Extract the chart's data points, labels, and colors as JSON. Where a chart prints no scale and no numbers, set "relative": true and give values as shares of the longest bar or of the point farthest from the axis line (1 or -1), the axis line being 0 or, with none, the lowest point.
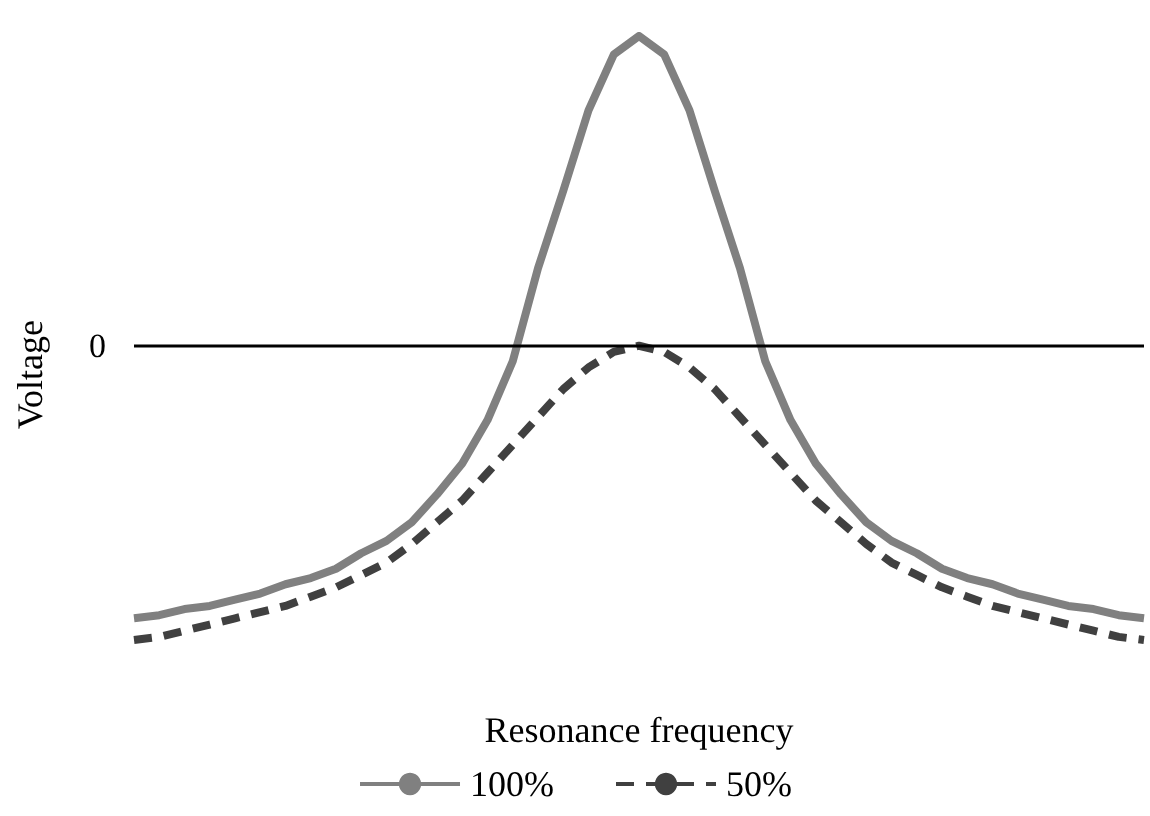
{
  "chart_data": {
    "type": "line",
    "relative": true,
    "xlabel": "Resonance frequency",
    "ylabel": "Voltage",
    "categories": [
      null,
      null,
      null,
      null,
      null,
      null,
      null,
      null,
      null,
      null,
      null,
      null,
      null,
      null,
      null,
      null,
      null,
      null,
      null,
      null,
      null,
      null,
      null,
      null,
      null,
      null,
      null,
      null,
      null,
      null,
      null,
      null,
      null,
      null,
      null,
      null,
      null,
      null,
      null,
      null,
      null
    ],
    "series": [
      {
        "name": "100%",
        "color": "#808080",
        "line_style": "solid",
        "values": [
          -0.88,
          -0.87,
          -0.85,
          -0.84,
          -0.82,
          -0.8,
          -0.77,
          -0.75,
          -0.72,
          -0.67,
          -0.63,
          -0.57,
          -0.48,
          -0.38,
          -0.24,
          -0.05,
          0.25,
          0.5,
          0.76,
          0.94,
          1.0,
          0.94,
          0.76,
          0.5,
          0.25,
          -0.05,
          -0.24,
          -0.38,
          -0.48,
          -0.57,
          -0.63,
          -0.67,
          -0.72,
          -0.75,
          -0.77,
          -0.8,
          -0.82,
          -0.84,
          -0.85,
          -0.87,
          -0.88
        ]
      },
      {
        "name": "50%",
        "color": "#404040",
        "line_style": "dashed",
        "values": [
          -0.95,
          -0.94,
          -0.92,
          -0.9,
          -0.88,
          -0.86,
          -0.84,
          -0.81,
          -0.78,
          -0.74,
          -0.7,
          -0.64,
          -0.57,
          -0.5,
          -0.41,
          -0.32,
          -0.23,
          -0.14,
          -0.07,
          -0.02,
          0,
          -0.02,
          -0.07,
          -0.14,
          -0.23,
          -0.32,
          -0.41,
          -0.5,
          -0.57,
          -0.64,
          -0.7,
          -0.74,
          -0.78,
          -0.81,
          -0.84,
          -0.86,
          -0.88,
          -0.9,
          -0.92,
          -0.94,
          -0.95
        ]
      }
    ],
    "ref_lines": [
      {
        "axis": "y",
        "value": 0,
        "label": "0",
        "color": "#000000"
      }
    ],
    "legend": "bottom",
    "marker": "none",
    "grid": false
  }
}
